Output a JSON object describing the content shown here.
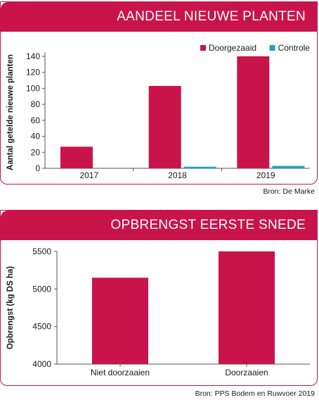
{
  "charts": [
    {
      "banner_title": "AANDEEL NIEUWE PLANTEN",
      "source": "Bron: De Marke",
      "colors": {
        "Doorgezaaid": "#c8144a",
        "Controle": "#1aa3c8"
      }
    },
    {
      "banner_title": "OPBRENGST EERSTE SNEDE",
      "source": "Bron: PPS Bodem en Ruwvoer 2019",
      "colors": {
        "bar": "#c8144a"
      }
    }
  ],
  "chart_data": [
    {
      "type": "bar",
      "title": "AANDEEL NIEUWE PLANTEN",
      "xlabel": "",
      "ylabel": "Aantal getelde nieuwe planten",
      "categories": [
        "2017",
        "2018",
        "2019"
      ],
      "series": [
        {
          "name": "Doorgezaaid",
          "values": [
            27,
            103,
            140
          ]
        },
        {
          "name": "Controle",
          "values": [
            0,
            2,
            3
          ]
        }
      ],
      "ylim": [
        0,
        140
      ],
      "yticks": [
        0,
        20,
        40,
        60,
        80,
        100,
        120,
        140
      ],
      "grid": false,
      "legend": "top-right"
    },
    {
      "type": "bar",
      "title": "OPBRENGST EERSTE SNEDE",
      "xlabel": "",
      "ylabel": "Opbrengst (kg DS ha)",
      "categories": [
        "Niet doorzaaien",
        "Doorzaaien"
      ],
      "values": [
        5150,
        5500
      ],
      "ylim": [
        4000,
        5500
      ],
      "yticks": [
        4000,
        4500,
        5000,
        5500
      ],
      "grid": false
    }
  ]
}
